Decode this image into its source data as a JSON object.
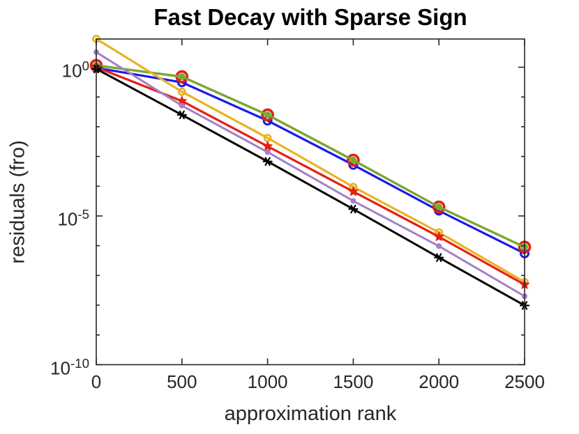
{
  "title": "Fast Decay with Sparse Sign",
  "chart_data": {
    "type": "line",
    "title": "Fast Decay with Sparse Sign",
    "xlabel": "approximation rank",
    "ylabel": "residuals (fro)",
    "yscale": "log",
    "grid": false,
    "legend": "none",
    "box": "on",
    "x": [
      0,
      500,
      1000,
      1500,
      2000,
      2500
    ],
    "xticks": [
      0,
      500,
      1000,
      1500,
      2000,
      2500
    ],
    "xlim": [
      0,
      2500
    ],
    "ylim": [
      1e-10,
      9.0
    ],
    "ytick_exponents_labeled": [
      0,
      -5,
      -10
    ],
    "ytick_exponents_minor": [
      0,
      -1,
      -2,
      -3,
      -4,
      -5,
      -6,
      -7,
      -8,
      -9,
      -10
    ],
    "axis_color": "#262626",
    "series": [
      {
        "name": "blue-circle",
        "color": "#1a1aee",
        "marker": "open-circle",
        "marker_radius": 5.5,
        "marker_stroke": 3,
        "line_width": 3.2,
        "values": [
          0.95,
          0.31,
          0.016,
          0.00052,
          1.5e-05,
          5.5e-07
        ]
      },
      {
        "name": "red-circle",
        "color": "#e32112",
        "marker": "open-circle",
        "marker_radius": 7.5,
        "marker_stroke": 3.6,
        "line_width": 3.2,
        "values": [
          1.15,
          0.48,
          0.025,
          0.00075,
          2e-05,
          9e-07
        ]
      },
      {
        "name": "green-dot",
        "color": "#74ac30",
        "marker": "filled-circle",
        "marker_radius": 5,
        "marker_stroke": 0,
        "line_width": 3.2,
        "values": [
          1.15,
          0.48,
          0.025,
          0.00075,
          2e-05,
          9e-07
        ]
      },
      {
        "name": "gold-circle",
        "color": "#e9b226",
        "marker": "open-circle",
        "marker_radius": 4.5,
        "marker_stroke": 2.8,
        "line_width": 3.2,
        "values": [
          9.0,
          0.15,
          0.0042,
          9.5e-05,
          2.8e-06,
          6e-08
        ]
      },
      {
        "name": "red-star",
        "color": "#e32112",
        "marker": "star",
        "marker_radius": 7,
        "marker_stroke": 1,
        "line_width": 3.2,
        "values": [
          1.0,
          0.073,
          0.0022,
          6.6e-05,
          2e-06,
          4.9e-08
        ]
      },
      {
        "name": "purple-dot",
        "color": "#a57fc6",
        "marker": "filled-circle",
        "marker_radius": 4,
        "marker_stroke": 0,
        "line_width": 3,
        "values": [
          3.2,
          0.051,
          0.0014,
          3.2e-05,
          9.7e-07,
          2e-08
        ]
      },
      {
        "name": "black-asterisk",
        "color": "#000000",
        "marker": "asterisk",
        "marker_radius": 6,
        "marker_stroke": 2.2,
        "line_width": 3,
        "values": [
          0.88,
          0.025,
          0.00068,
          1.7e-05,
          4e-07,
          9.8e-09
        ]
      }
    ]
  }
}
